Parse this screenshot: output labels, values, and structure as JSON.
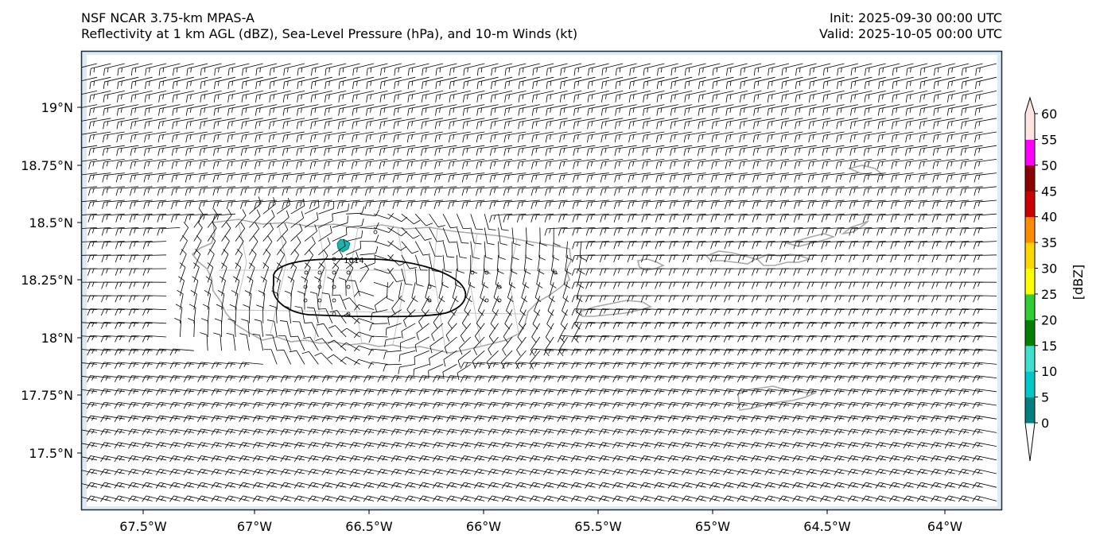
{
  "title": {
    "left_line1": "NSF NCAR 3.75-km MPAS-A",
    "left_line2": "Reflectivity at 1 km AGL (dBZ), Sea-Level Pressure (hPa), and 10-m Winds (kt)",
    "right_line1": "Init: 2025-09-30 00:00 UTC",
    "right_line2": "Valid: 2025-10-05 00:00 UTC"
  },
  "map": {
    "lon_ticks": [
      "67.5°W",
      "67°W",
      "66.5°W",
      "66°W",
      "65.5°W",
      "65°W",
      "64.5°W",
      "64°W"
    ],
    "lat_ticks": [
      "19°N",
      "18.75°N",
      "18.5°N",
      "18.25°N",
      "18°N",
      "17.75°N",
      "17.5°N"
    ],
    "isobar_label": "1014",
    "colors": {
      "ocean": "#dde9f3",
      "frame": "#1b2b3b",
      "coast": "#a9a9a9",
      "barb": "#000000",
      "echo": "#20b2aa"
    }
  },
  "colorbar": {
    "label": "[dBZ]",
    "tick_labels": [
      "0",
      "5",
      "10",
      "15",
      "20",
      "25",
      "30",
      "35",
      "40",
      "45",
      "50",
      "55",
      "60"
    ],
    "levels": [
      0,
      5,
      10,
      15,
      20,
      25,
      30,
      35,
      40,
      45,
      50,
      55,
      60
    ],
    "colors": [
      "#008080",
      "#00c8c8",
      "#40e0d0",
      "#008000",
      "#32cd32",
      "#ffff00",
      "#ffd700",
      "#ff8c00",
      "#cc0000",
      "#8b0000",
      "#ff00ff",
      "#ffe4e1"
    ],
    "under_color": "#ffffff",
    "over_color": "#ffe4e1"
  }
}
